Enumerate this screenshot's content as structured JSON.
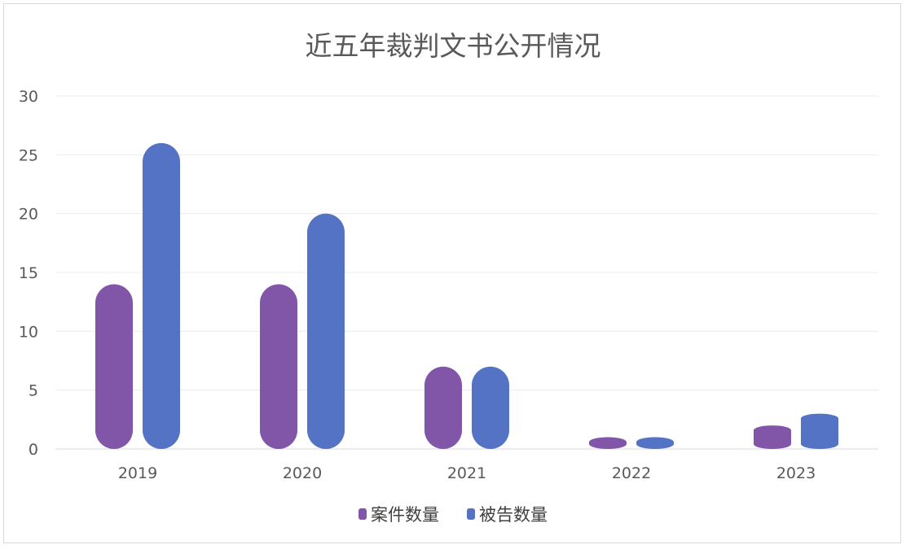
{
  "chart_data": {
    "type": "bar",
    "title": "近五年裁判文书公开情况",
    "xlabel": "",
    "ylabel": "",
    "categories": [
      "2019",
      "2020",
      "2021",
      "2022",
      "2023"
    ],
    "series": [
      {
        "name": "案件数量",
        "values": [
          14,
          14,
          7,
          1,
          2
        ],
        "color": "#8155a8"
      },
      {
        "name": "被告数量",
        "values": [
          26,
          20,
          7,
          1,
          3
        ],
        "color": "#5573c4"
      }
    ],
    "ylim": [
      0,
      30
    ],
    "yticks": [
      "0",
      "5",
      "10",
      "15",
      "20",
      "25",
      "30"
    ],
    "grid": true,
    "legend_position": "bottom",
    "bar_shape": "cylinder"
  }
}
